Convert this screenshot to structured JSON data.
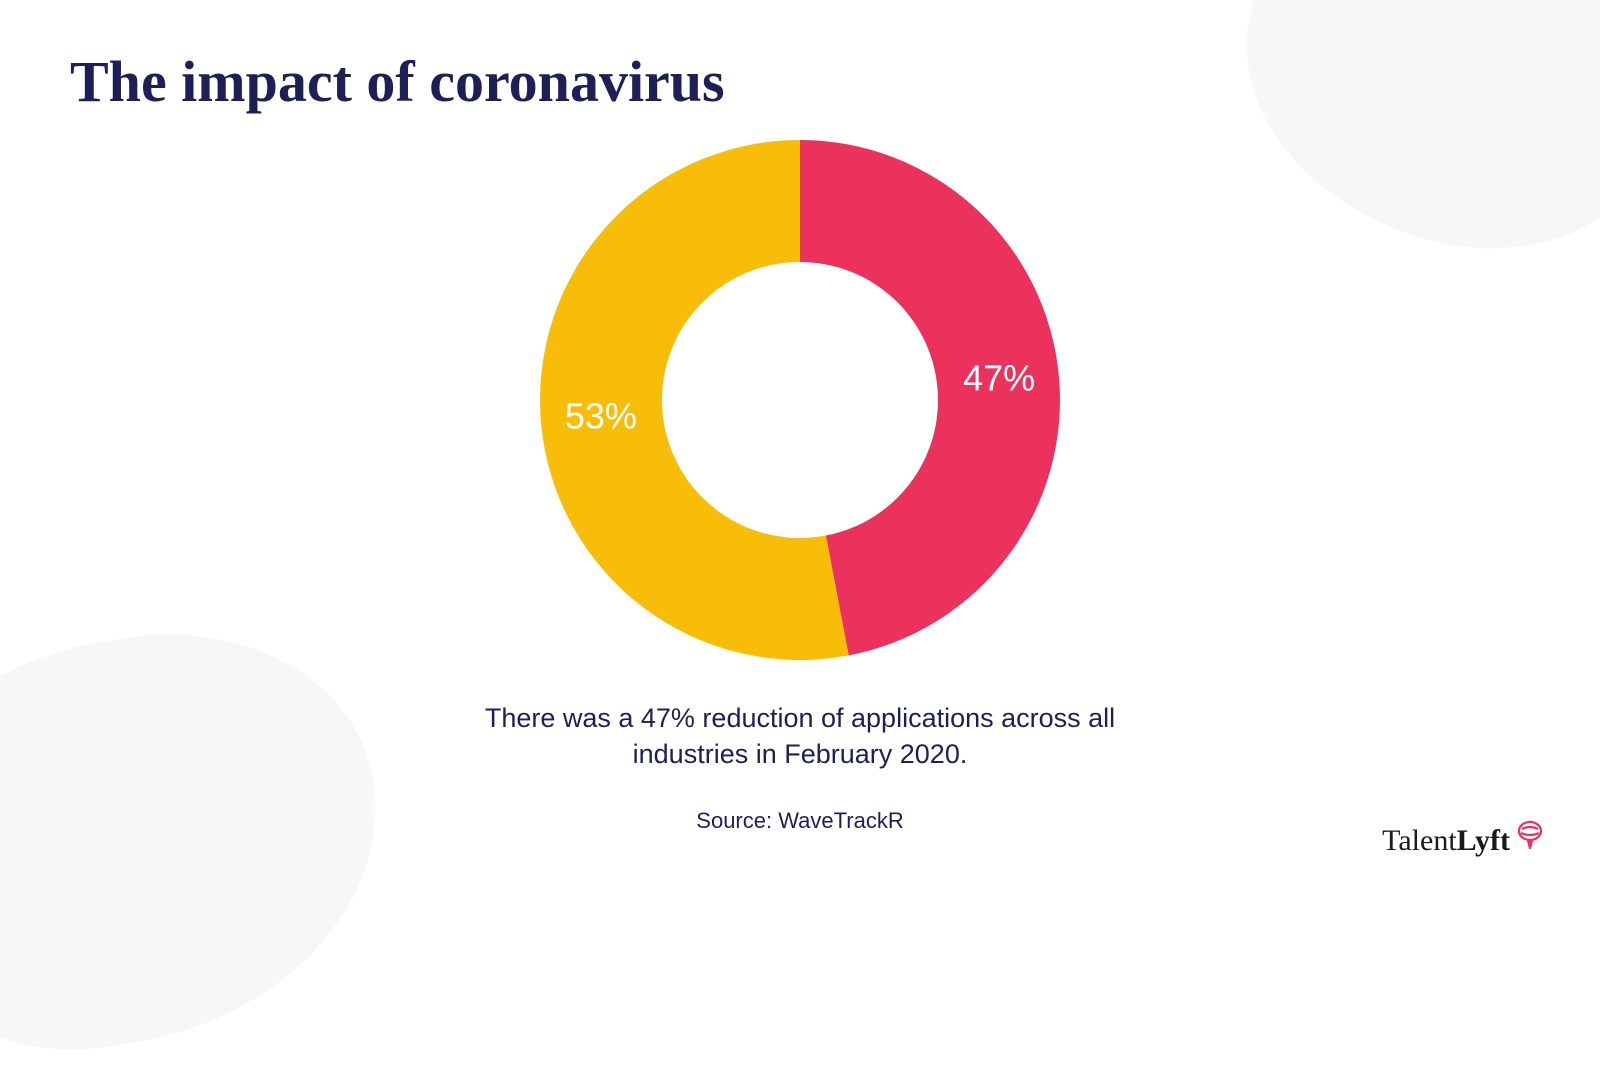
{
  "title": "The impact of coronavirus",
  "title_fontsize": 58,
  "title_color": "#1e1f56",
  "chart": {
    "type": "donut",
    "slices": [
      {
        "label": "47%",
        "value": 47,
        "color": "#ea325c"
      },
      {
        "label": "53%",
        "value": 53,
        "color": "#f8bd09"
      }
    ],
    "outer_radius": 260,
    "inner_radius": 138,
    "start_angle_deg": 0,
    "label_fontsize": 36,
    "label_color": "#ffffff",
    "label_radius": 200,
    "center_color": "#ffffff"
  },
  "caption": {
    "line1": "There was a 47% reduction of applications across all",
    "line2": "industries in February 2020.",
    "fontsize": 27,
    "color": "#1e1f56"
  },
  "source": {
    "text": "Source: WaveTrackR",
    "fontsize": 22,
    "color": "#1e1f56"
  },
  "brand": {
    "name_part1": "Talent",
    "name_part2": "Lyft",
    "fontsize": 30,
    "icon_color": "#ea325c"
  },
  "background": {
    "page_color": "#ffffff",
    "shape_color": "#f7f7f9"
  }
}
